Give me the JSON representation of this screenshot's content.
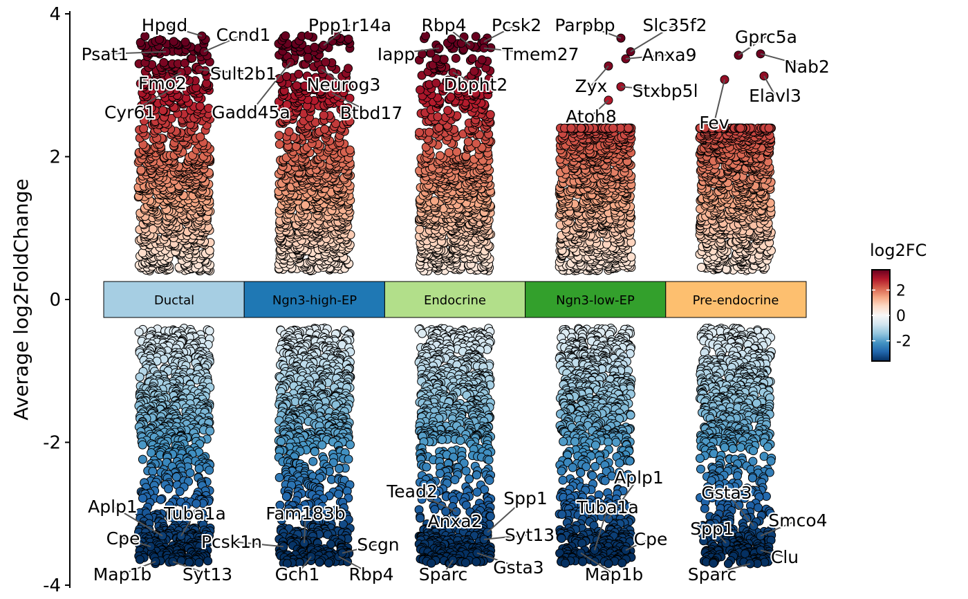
{
  "chart_data": {
    "type": "scatter",
    "subtype": "jittered volcano by cluster",
    "ylabel": "Average log2FoldChange",
    "xlabel": "",
    "ylim": [
      -4,
      4
    ],
    "yticks": [
      "4",
      "2",
      "0",
      "-2",
      "-4"
    ],
    "ytick_values": [
      4,
      2,
      0,
      -2,
      -4
    ],
    "legend": {
      "title": "log2FC",
      "placement": "right",
      "ticks": [
        "2",
        "0",
        "-2"
      ],
      "tick_values": [
        2,
        0,
        -2
      ],
      "range": [
        -3.6,
        3.6
      ],
      "palette": "RdBu"
    },
    "clusters": [
      {
        "name": "Ductal",
        "color": "#A6CEE3",
        "up_range": [
          0.4,
          3.7
        ],
        "down_range": [
          -3.7,
          -0.4
        ]
      },
      {
        "name": "Ngn3-high-EP",
        "color": "#1F78B4",
        "up_range": [
          0.4,
          3.7
        ],
        "down_range": [
          -3.7,
          -0.4
        ]
      },
      {
        "name": "Endocrine",
        "color": "#B2DF8A",
        "up_range": [
          0.4,
          3.7
        ],
        "down_range": [
          -3.7,
          -0.4
        ]
      },
      {
        "name": "Ngn3-low-EP",
        "color": "#33A02C",
        "up_range": [
          0.4,
          2.4
        ],
        "down_range": [
          -3.7,
          -0.4
        ]
      },
      {
        "name": "Pre-endocrine",
        "color": "#FDBF6F",
        "up_range": [
          0.4,
          2.4
        ],
        "down_range": [
          -3.7,
          -0.4
        ]
      }
    ],
    "labeled_genes": [
      {
        "gene": "Hpgd",
        "cluster": 0,
        "value": 3.69
      },
      {
        "gene": "Ccnd1",
        "cluster": 0,
        "value": 3.47
      },
      {
        "gene": "Psat1",
        "cluster": 0,
        "value": 3.47
      },
      {
        "gene": "Sult2b1",
        "cluster": 0,
        "value": 3.22
      },
      {
        "gene": "Fmo2",
        "cluster": 0,
        "value": 3.18
      },
      {
        "gene": "Cyr61",
        "cluster": 0,
        "value": 2.93
      },
      {
        "gene": "Aplp1",
        "cluster": 0,
        "value": -3.31
      },
      {
        "gene": "Tuba1a",
        "cluster": 0,
        "value": -3.31
      },
      {
        "gene": "Cpe",
        "cluster": 0,
        "value": -3.46
      },
      {
        "gene": "Map1b",
        "cluster": 0,
        "value": -3.67
      },
      {
        "gene": "Syt13",
        "cluster": 0,
        "value": -3.67
      },
      {
        "gene": "Ppp1r14a",
        "cluster": 1,
        "value": 3.56
      },
      {
        "gene": "Neurog3",
        "cluster": 1,
        "value": 3.22
      },
      {
        "gene": "Gadd45a",
        "cluster": 1,
        "value": 3.32
      },
      {
        "gene": "Btbd17",
        "cluster": 1,
        "value": 2.89
      },
      {
        "gene": "Fam183b",
        "cluster": 1,
        "value": -3.41
      },
      {
        "gene": "Pcsk1n",
        "cluster": 1,
        "value": -3.46
      },
      {
        "gene": "Gch1",
        "cluster": 1,
        "value": -3.6
      },
      {
        "gene": "Rbp4",
        "cluster": 1,
        "value": -3.6
      },
      {
        "gene": "Scgn",
        "cluster": 1,
        "value": -3.55
      },
      {
        "gene": "Rbp4",
        "cluster": 2,
        "value": 3.56
      },
      {
        "gene": "Pcsk2",
        "cluster": 2,
        "value": 3.61
      },
      {
        "gene": "Iapp",
        "cluster": 2,
        "value": 3.52
      },
      {
        "gene": "Tmem27",
        "cluster": 2,
        "value": 3.52
      },
      {
        "gene": "Dbpht2",
        "cluster": 2,
        "value": 3.18
      },
      {
        "gene": "Tead2",
        "cluster": 2,
        "value": -2.97
      },
      {
        "gene": "Anxa2",
        "cluster": 2,
        "value": -3.17
      },
      {
        "gene": "Spp1",
        "cluster": 2,
        "value": -3.26
      },
      {
        "gene": "Syt13",
        "cluster": 2,
        "value": -3.36
      },
      {
        "gene": "Gsta3",
        "cluster": 2,
        "value": -3.55
      },
      {
        "gene": "Sparc",
        "cluster": 2,
        "value": -3.65
      },
      {
        "gene": "Parpbp",
        "cluster": 3,
        "value": 3.66
      },
      {
        "gene": "Slc35f2",
        "cluster": 3,
        "value": 3.47
      },
      {
        "gene": "Anxa9",
        "cluster": 3,
        "value": 3.37
      },
      {
        "gene": "Zyx",
        "cluster": 3,
        "value": 3.27
      },
      {
        "gene": "Stxbp5l",
        "cluster": 3,
        "value": 2.98
      },
      {
        "gene": "Atoh8",
        "cluster": 3,
        "value": 2.79
      },
      {
        "gene": "Aplp1",
        "cluster": 3,
        "value": -3.07
      },
      {
        "gene": "Tuba1a",
        "cluster": 3,
        "value": -3.51
      },
      {
        "gene": "Cpe",
        "cluster": 3,
        "value": -3.51
      },
      {
        "gene": "Map1b",
        "cluster": 3,
        "value": -3.55
      },
      {
        "gene": "Gprc5a",
        "cluster": 4,
        "value": 3.42
      },
      {
        "gene": "Nab2",
        "cluster": 4,
        "value": 3.44
      },
      {
        "gene": "Elavl3",
        "cluster": 4,
        "value": 3.13
      },
      {
        "gene": "Fev",
        "cluster": 4,
        "value": 3.08
      },
      {
        "gene": "Gsta3",
        "cluster": 4,
        "value": -3.17
      },
      {
        "gene": "Smco4",
        "cluster": 4,
        "value": -3.31
      },
      {
        "gene": "Spp1",
        "cluster": 4,
        "value": -3.41
      },
      {
        "gene": "Clu",
        "cluster": 4,
        "value": -3.51
      },
      {
        "gene": "Sparc",
        "cluster": 4,
        "value": -3.7
      }
    ]
  }
}
